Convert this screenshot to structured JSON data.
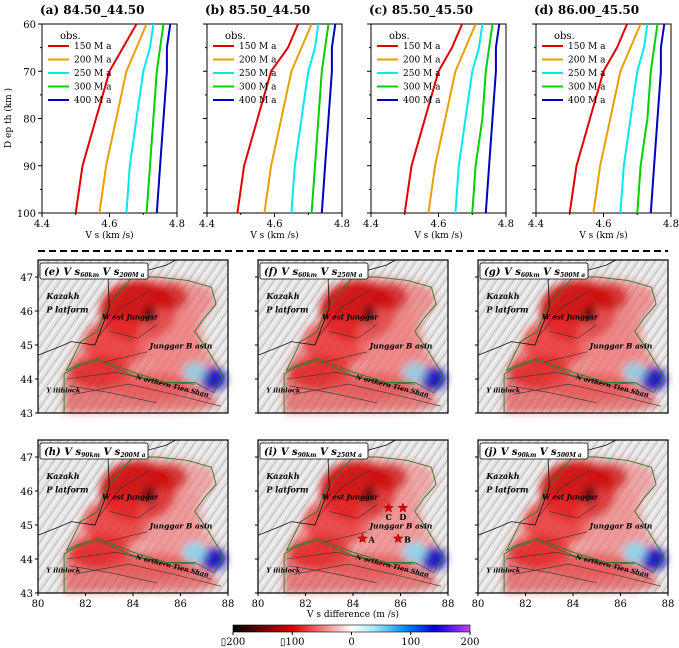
{
  "profiles": {
    "xlabel": "V s (km /s)",
    "ylabel": "D ep th (km )",
    "xlim": [
      4.4,
      4.8
    ],
    "ylim": [
      60,
      100
    ],
    "xticks": [
      "4.4",
      "4.6",
      "4.8"
    ],
    "yticks": [
      "60",
      "70",
      "80",
      "90",
      "100"
    ],
    "legend_title": "obs.",
    "colors": {
      "150": "#e00000",
      "200": "#e8a000",
      "250": "#00e8f0",
      "300": "#00d000",
      "400": "#0000c0"
    }
  },
  "map": {
    "xticks": [
      "80",
      "82",
      "84",
      "86",
      "88"
    ],
    "yticks": [
      "43",
      "44",
      "45",
      "46",
      "47"
    ],
    "xlabel": "V s difference (m /s)",
    "labels": {
      "kazakh1": "Kazakh",
      "kazakh2": "P latform",
      "wj": "W est Junggar",
      "jb": "Junggar B asin",
      "yb": "Y iliblock",
      "nts": "N orthern Tien Shan"
    },
    "stars": [
      {
        "label": "A",
        "lon": 84.4,
        "lat": 44.6
      },
      {
        "label": "B",
        "lon": 85.9,
        "lat": 44.6
      },
      {
        "label": "C",
        "lon": 85.5,
        "lat": 45.5
      },
      {
        "label": "D",
        "lon": 86.1,
        "lat": 45.5
      }
    ]
  },
  "colorbar": {
    "ticks": [
      "▯200",
      "▯100",
      "0",
      "100",
      "200"
    ],
    "range": [
      -200,
      200
    ]
  },
  "chart_data": [
    {
      "type": "line",
      "title": "(a) 84.50_44.50",
      "xlabel": "V s (km /s)",
      "ylabel": "D ep th (km )",
      "xlim": [
        4.4,
        4.8
      ],
      "ylim": [
        100,
        60
      ],
      "series": [
        {
          "name": "150 M a",
          "x": [
            4.5,
            4.52,
            4.56,
            4.6,
            4.64,
            4.68
          ],
          "y": [
            100,
            90,
            80,
            70,
            65,
            60
          ]
        },
        {
          "name": "200 M a",
          "x": [
            4.57,
            4.59,
            4.62,
            4.65,
            4.68,
            4.71
          ],
          "y": [
            100,
            90,
            80,
            70,
            65,
            60
          ]
        },
        {
          "name": "250 M a",
          "x": [
            4.65,
            4.66,
            4.68,
            4.7,
            4.72,
            4.73
          ],
          "y": [
            100,
            90,
            80,
            70,
            65,
            60
          ]
        },
        {
          "name": "300 M a",
          "x": [
            4.71,
            4.72,
            4.73,
            4.74,
            4.75,
            4.76
          ],
          "y": [
            100,
            90,
            80,
            70,
            65,
            60
          ]
        },
        {
          "name": "400 M a",
          "x": [
            4.74,
            4.75,
            4.76,
            4.77,
            4.77,
            4.78
          ],
          "y": [
            100,
            90,
            80,
            70,
            65,
            60
          ]
        }
      ]
    },
    {
      "type": "line",
      "title": "(b) 85.50_44.50",
      "xlabel": "V s (km /s)",
      "ylabel": "",
      "xlim": [
        4.4,
        4.8
      ],
      "ylim": [
        100,
        60
      ],
      "series": [
        {
          "name": "150 M a",
          "x": [
            4.49,
            4.51,
            4.55,
            4.59,
            4.64,
            4.67
          ],
          "y": [
            100,
            90,
            80,
            70,
            65,
            60
          ]
        },
        {
          "name": "200 M a",
          "x": [
            4.57,
            4.59,
            4.62,
            4.65,
            4.68,
            4.71
          ],
          "y": [
            100,
            90,
            80,
            70,
            65,
            60
          ]
        },
        {
          "name": "250 M a",
          "x": [
            4.65,
            4.66,
            4.68,
            4.7,
            4.72,
            4.73
          ],
          "y": [
            100,
            90,
            80,
            70,
            65,
            60
          ]
        },
        {
          "name": "300 M a",
          "x": [
            4.71,
            4.72,
            4.73,
            4.74,
            4.75,
            4.76
          ],
          "y": [
            100,
            90,
            80,
            70,
            65,
            60
          ]
        },
        {
          "name": "400 M a",
          "x": [
            4.74,
            4.75,
            4.76,
            4.77,
            4.77,
            4.78
          ],
          "y": [
            100,
            90,
            80,
            70,
            65,
            60
          ]
        }
      ]
    },
    {
      "type": "line",
      "title": "(c) 85.50_45.50",
      "xlabel": "V s (km /s)",
      "ylabel": "",
      "xlim": [
        4.4,
        4.8
      ],
      "ylim": [
        100,
        60
      ],
      "series": [
        {
          "name": "150 M a",
          "x": [
            4.5,
            4.52,
            4.56,
            4.6,
            4.64,
            4.67
          ],
          "y": [
            100,
            90,
            80,
            70,
            65,
            60
          ]
        },
        {
          "name": "200 M a",
          "x": [
            4.57,
            4.59,
            4.62,
            4.65,
            4.68,
            4.71
          ],
          "y": [
            100,
            90,
            80,
            70,
            65,
            60
          ]
        },
        {
          "name": "250 M a",
          "x": [
            4.65,
            4.66,
            4.68,
            4.7,
            4.72,
            4.73
          ],
          "y": [
            100,
            90,
            80,
            70,
            65,
            60
          ]
        },
        {
          "name": "300 M a",
          "x": [
            4.7,
            4.71,
            4.73,
            4.74,
            4.75,
            4.76
          ],
          "y": [
            100,
            90,
            80,
            70,
            65,
            60
          ]
        },
        {
          "name": "400 M a",
          "x": [
            4.74,
            4.75,
            4.76,
            4.77,
            4.77,
            4.78
          ],
          "y": [
            100,
            90,
            80,
            70,
            65,
            60
          ]
        }
      ]
    },
    {
      "type": "line",
      "title": "(d) 86.00_45.50",
      "xlabel": "V s (km /s)",
      "ylabel": "",
      "xlim": [
        4.4,
        4.8
      ],
      "ylim": [
        100,
        60
      ],
      "series": [
        {
          "name": "150 M a",
          "x": [
            4.5,
            4.52,
            4.56,
            4.6,
            4.64,
            4.67
          ],
          "y": [
            100,
            90,
            80,
            70,
            65,
            60
          ]
        },
        {
          "name": "200 M a",
          "x": [
            4.57,
            4.59,
            4.62,
            4.65,
            4.68,
            4.71
          ],
          "y": [
            100,
            90,
            80,
            70,
            65,
            60
          ]
        },
        {
          "name": "250 M a",
          "x": [
            4.65,
            4.66,
            4.68,
            4.7,
            4.72,
            4.73
          ],
          "y": [
            100,
            90,
            80,
            70,
            65,
            60
          ]
        },
        {
          "name": "300 M a",
          "x": [
            4.7,
            4.71,
            4.73,
            4.74,
            4.75,
            4.76
          ],
          "y": [
            100,
            90,
            80,
            70,
            65,
            60
          ]
        },
        {
          "name": "400 M a",
          "x": [
            4.74,
            4.75,
            4.76,
            4.77,
            4.77,
            4.78
          ],
          "y": [
            100,
            90,
            80,
            70,
            65,
            60
          ]
        }
      ]
    },
    {
      "type": "heatmap",
      "title_prefix": "(e)",
      "title_a": "V s",
      "sub_a": "60km",
      "title_b": "V s",
      "sub_b": "200M a",
      "xlim": [
        80,
        88
      ],
      "ylim": [
        43,
        47.5
      ]
    },
    {
      "type": "heatmap",
      "title_prefix": "(f)",
      "title_a": "V s",
      "sub_a": "60km",
      "title_b": "V s",
      "sub_b": "250M a",
      "xlim": [
        80,
        88
      ],
      "ylim": [
        43,
        47.5
      ]
    },
    {
      "type": "heatmap",
      "title_prefix": "(g)",
      "title_a": "V s",
      "sub_a": "60km",
      "title_b": "V s",
      "sub_b": "500M a",
      "xlim": [
        80,
        88
      ],
      "ylim": [
        43,
        47.5
      ]
    },
    {
      "type": "heatmap",
      "title_prefix": "(h)",
      "title_a": "V s",
      "sub_a": "90km",
      "title_b": "V s",
      "sub_b": "200M a",
      "xlim": [
        80,
        88
      ],
      "ylim": [
        43,
        47.5
      ]
    },
    {
      "type": "heatmap",
      "title_prefix": "(i)",
      "title_a": "V s",
      "sub_a": "90km",
      "title_b": "V s",
      "sub_b": "250M a",
      "xlim": [
        80,
        88
      ],
      "ylim": [
        43,
        47.5
      ]
    },
    {
      "type": "heatmap",
      "title_prefix": "(j)",
      "title_a": "V s",
      "sub_a": "90km",
      "title_b": "V s",
      "sub_b": "500M a",
      "xlim": [
        80,
        88
      ],
      "ylim": [
        43,
        47.5
      ]
    }
  ]
}
